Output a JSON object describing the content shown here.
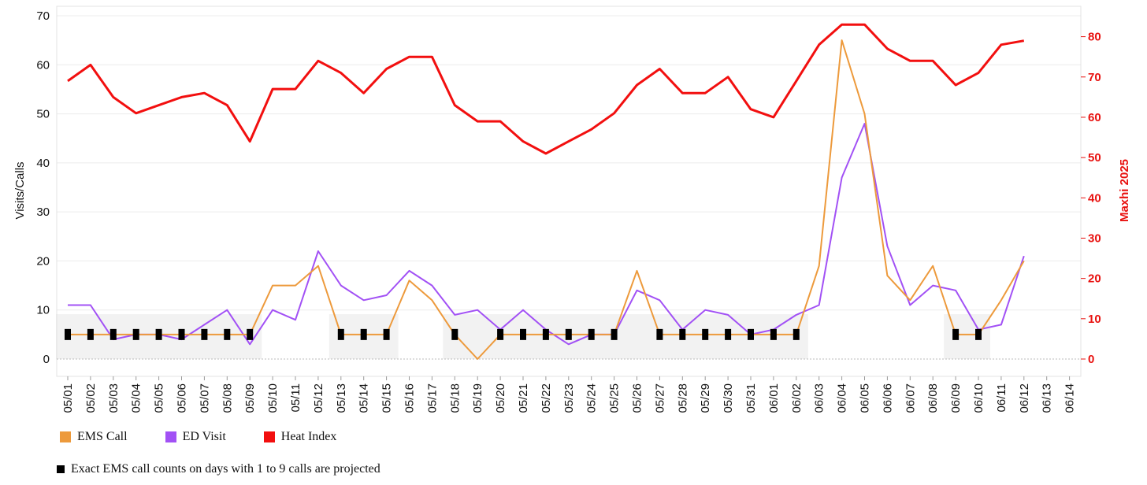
{
  "chart_data": {
    "type": "line",
    "categories": [
      "05/01",
      "05/02",
      "05/03",
      "05/04",
      "05/05",
      "05/06",
      "05/07",
      "05/08",
      "05/09",
      "05/10",
      "05/11",
      "05/12",
      "05/13",
      "05/14",
      "05/15",
      "05/16",
      "05/17",
      "05/18",
      "05/19",
      "05/20",
      "05/21",
      "05/22",
      "05/23",
      "05/24",
      "05/25",
      "05/26",
      "05/27",
      "05/28",
      "05/29",
      "05/30",
      "05/31",
      "06/01",
      "06/02",
      "06/03",
      "06/04",
      "06/05",
      "06/06",
      "06/07",
      "06/08",
      "06/09",
      "06/10",
      "06/11",
      "06/12",
      "06/13",
      "06/14"
    ],
    "series": [
      {
        "name": "EMS Call",
        "axis": "left",
        "color": "#ED9A3C",
        "values": [
          5,
          5,
          5,
          5,
          5,
          5,
          5,
          5,
          5,
          15,
          15,
          19,
          5,
          5,
          5,
          16,
          12,
          5,
          0,
          5,
          5,
          5,
          5,
          5,
          5,
          18,
          5,
          5,
          5,
          5,
          5,
          5,
          5,
          19,
          65,
          50,
          17,
          12,
          19,
          5,
          5,
          12,
          20,
          null,
          null
        ]
      },
      {
        "name": "ED Visit",
        "axis": "left",
        "color": "#A251F5",
        "values": [
          11,
          11,
          4,
          5,
          5,
          4,
          7,
          10,
          3,
          10,
          8,
          22,
          15,
          12,
          13,
          18,
          15,
          9,
          10,
          6,
          10,
          6,
          3,
          5,
          5,
          14,
          12,
          6,
          10,
          9,
          5,
          6,
          9,
          11,
          37,
          48,
          23,
          11,
          15,
          14,
          6,
          7,
          21,
          null,
          null
        ]
      },
      {
        "name": "Heat Index",
        "axis": "right",
        "color": "#F20F0F",
        "values": [
          69,
          73,
          65,
          61,
          63,
          65,
          66,
          63,
          54,
          67,
          67,
          74,
          71,
          66,
          72,
          75,
          75,
          63,
          59,
          59,
          54,
          51,
          54,
          57,
          61,
          68,
          72,
          66,
          66,
          70,
          62,
          60,
          69,
          78,
          83,
          83,
          77,
          74,
          74,
          68,
          71,
          78,
          79,
          null,
          null
        ]
      }
    ],
    "projected_markers": {
      "value": 5,
      "days": [
        "05/01",
        "05/02",
        "05/03",
        "05/04",
        "05/05",
        "05/06",
        "05/07",
        "05/08",
        "05/09",
        "05/13",
        "05/14",
        "05/15",
        "05/18",
        "05/20",
        "05/21",
        "05/22",
        "05/23",
        "05/24",
        "05/25",
        "05/27",
        "05/28",
        "05/29",
        "05/30",
        "05/31",
        "06/01",
        "06/02",
        "06/09",
        "06/10"
      ]
    },
    "ylabel": "Visits/Calls",
    "y2label": "Maxhi 2025",
    "ylim": [
      0,
      70
    ],
    "y2lim": [
      0,
      85
    ],
    "yticks": [
      0,
      10,
      20,
      30,
      40,
      50,
      60,
      70
    ],
    "y2ticks": [
      0,
      10,
      20,
      30,
      40,
      50,
      60,
      70,
      80
    ],
    "grid": true,
    "legend_position": "bottom"
  },
  "legend": {
    "items": [
      {
        "label": "EMS Call",
        "color": "#ED9A3C"
      },
      {
        "label": "ED Visit",
        "color": "#A251F5"
      },
      {
        "label": "Heat Index",
        "color": "#F20F0F"
      }
    ],
    "footnote": "Exact EMS call counts on days with 1 to 9 calls are projected"
  }
}
